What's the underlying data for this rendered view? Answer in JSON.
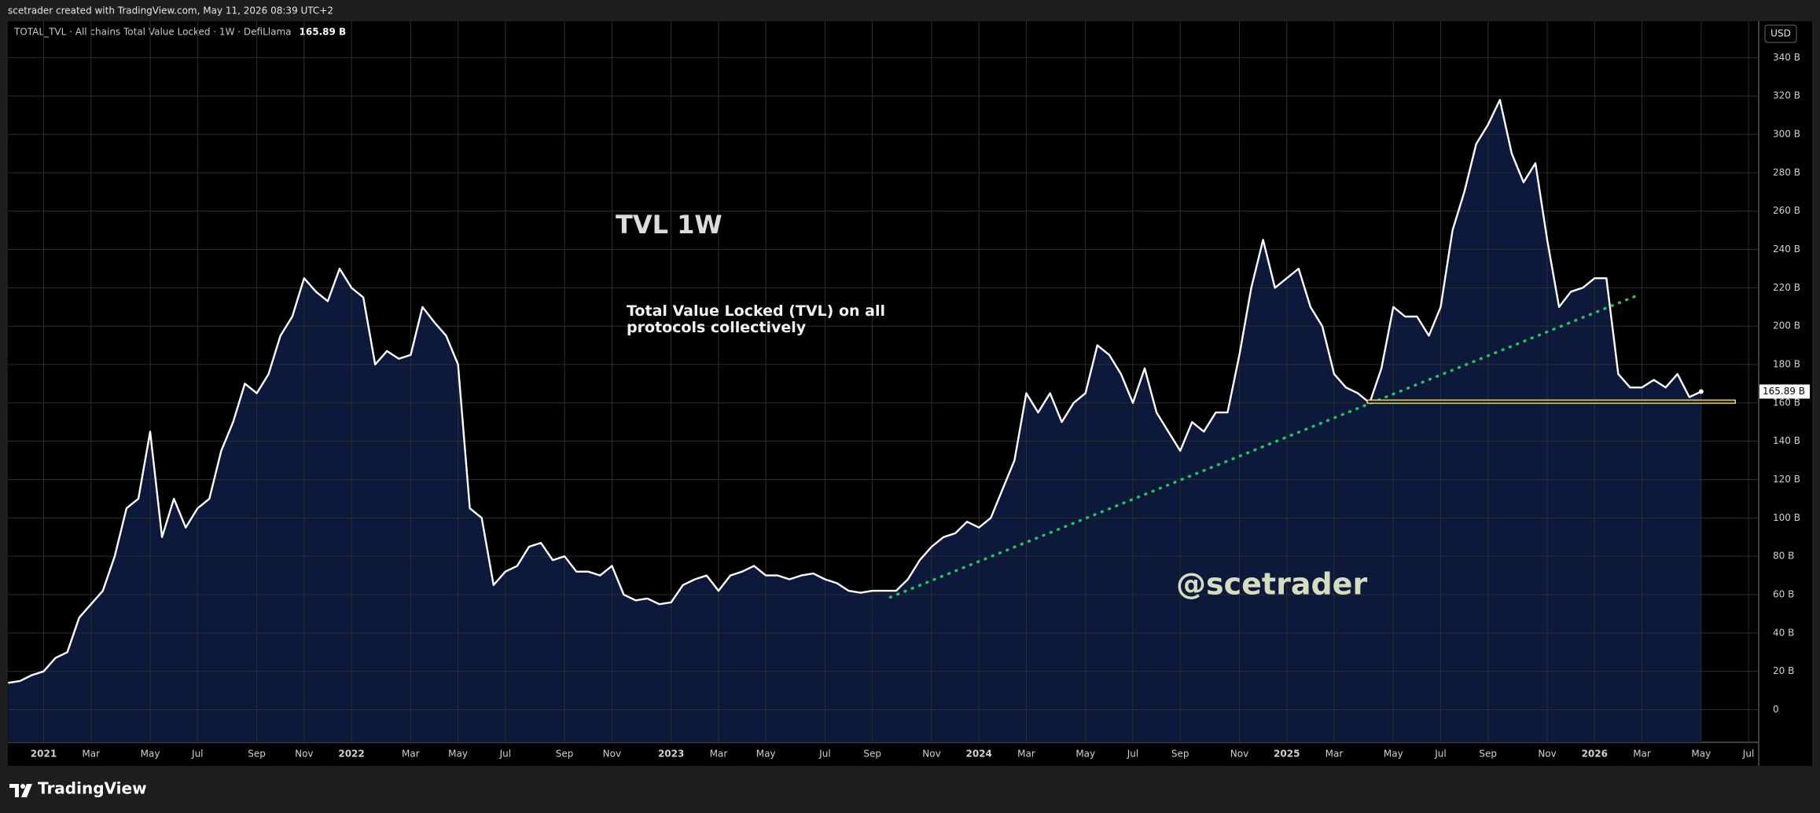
{
  "chart_data": {
    "type": "area",
    "attribution": "scetrader created with TradingView.com, May 11, 2026 08:39 UTC+2",
    "legend_text": "TOTAL_TVL · All chains Total Value Locked · 1W · DefiLlama",
    "currency": "USD",
    "title": "TVL 1W",
    "subtitle": "Total Value Locked (TVL) on all protocols collectively",
    "watermark": "@scetrader",
    "brand": "TradingView",
    "line_color": "#ffffff",
    "fill_color": "#0d1a3d",
    "grid": true,
    "last_price": {
      "value": 165.89,
      "label": "165.89 B"
    },
    "categories": [
      null,
      null,
      null,
      "2021",
      null,
      null,
      null,
      "Mar",
      null,
      null,
      null,
      null,
      "May",
      null,
      null,
      null,
      "Jul",
      null,
      null,
      null,
      null,
      "Sep",
      null,
      null,
      null,
      "Nov",
      null,
      null,
      null,
      "2022",
      null,
      null,
      null,
      null,
      "Mar",
      null,
      null,
      null,
      "May",
      null,
      null,
      null,
      "Jul",
      null,
      null,
      null,
      null,
      "Sep",
      null,
      null,
      null,
      "Nov",
      null,
      null,
      null,
      null,
      "2023",
      null,
      null,
      null,
      "Mar",
      null,
      null,
      null,
      "May",
      null,
      null,
      null,
      null,
      "Jul",
      null,
      null,
      null,
      "Sep",
      null,
      null,
      null,
      null,
      "Nov",
      null,
      null,
      null,
      "2024",
      null,
      null,
      null,
      "Mar",
      null,
      null,
      null,
      null,
      "May",
      null,
      null,
      null,
      "Jul",
      null,
      null,
      null,
      "Sep",
      null,
      null,
      null,
      null,
      "Nov",
      null,
      null,
      null,
      "2025",
      null,
      null,
      null,
      "Mar",
      null,
      null,
      null,
      null,
      "May",
      null,
      null,
      null,
      "Jul",
      null,
      null,
      null,
      "Sep",
      null,
      null,
      null,
      null,
      "Nov",
      null,
      null,
      null,
      "2026",
      null,
      null,
      null,
      "Mar",
      null,
      null,
      null,
      null,
      "May",
      null,
      null,
      null,
      "Jul"
    ],
    "values": [
      14,
      15,
      18,
      20,
      27,
      30,
      48,
      55,
      62,
      80,
      105,
      110,
      145,
      90,
      110,
      95,
      105,
      110,
      135,
      150,
      170,
      165,
      175,
      195,
      205,
      225,
      218,
      213,
      230,
      220,
      215,
      180,
      187,
      183,
      185,
      210,
      202,
      195,
      180,
      105,
      100,
      65,
      72,
      75,
      85,
      87,
      78,
      80,
      72,
      72,
      70,
      75,
      60,
      57,
      58,
      55,
      56,
      65,
      68,
      70,
      62,
      70,
      72,
      75,
      70,
      70,
      68,
      70,
      71,
      68,
      66,
      62,
      61,
      62,
      62,
      62,
      68,
      78,
      85,
      90,
      92,
      98,
      95,
      100,
      115,
      130,
      165,
      155,
      165,
      150,
      160,
      165,
      190,
      185,
      175,
      160,
      178,
      155,
      145,
      135,
      150,
      145,
      155,
      155,
      185,
      220,
      245,
      220,
      225,
      230,
      210,
      200,
      175,
      168,
      165,
      160,
      178,
      210,
      205,
      205,
      195,
      210,
      250,
      270,
      295,
      305,
      318,
      290,
      275,
      285,
      245,
      210,
      218,
      220,
      225,
      225,
      175,
      168,
      168,
      172,
      168,
      175,
      163,
      165.89,
      null,
      null,
      null,
      null
    ],
    "ylim": [
      -17,
      359
    ],
    "yticks": [
      0,
      {
        "value": 20,
        "label": "20 B"
      },
      {
        "value": 40,
        "label": "40 B"
      },
      {
        "value": 60,
        "label": "60 B"
      },
      {
        "value": 80,
        "label": "80 B"
      },
      {
        "value": 100,
        "label": "100 B"
      },
      {
        "value": 120,
        "label": "120 B"
      },
      {
        "value": 140,
        "label": "140 B"
      },
      {
        "value": 160,
        "label": "160 B"
      },
      {
        "value": 180,
        "label": "180 B"
      },
      {
        "value": 200,
        "label": "200 B"
      },
      {
        "value": 220,
        "label": "220 B"
      },
      {
        "value": 240,
        "label": "240 B"
      },
      {
        "value": 260,
        "label": "260 B"
      },
      {
        "value": 280,
        "label": "280 B"
      },
      {
        "value": 300,
        "label": "300 B"
      },
      {
        "value": 320,
        "label": "320 B"
      },
      {
        "value": 340,
        "label": "340 B"
      }
    ]
  }
}
